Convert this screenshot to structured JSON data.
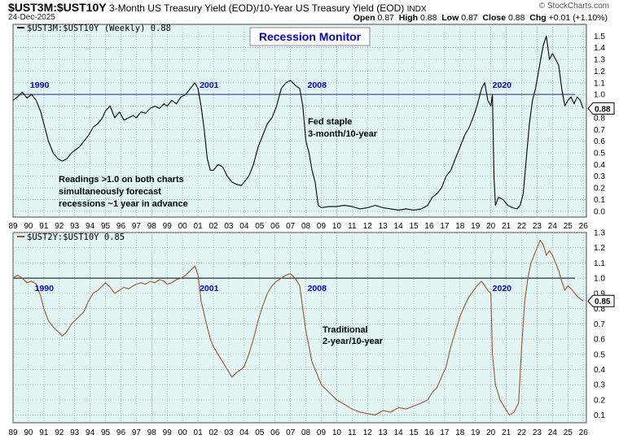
{
  "header": {
    "symbol": "$UST3M:$UST10Y",
    "description": "3-Month US Treasury Yield (EOD)/10-Year US Treasury Yield (EOD)",
    "index_tag": "INDX",
    "date": "24-Dec-2025",
    "brand": "© StockCharts.com",
    "quote": {
      "open_label": "Open",
      "open": "0.87",
      "high_label": "High",
      "high": "0.88",
      "low_label": "Low",
      "low": "0.87",
      "close_label": "Close",
      "close": "0.88",
      "chg_label": "Chg",
      "chg": "+0.01 (+1.10%)"
    }
  },
  "colors": {
    "panel_bg": "#e1f5f5",
    "grid": "#9a9a9a",
    "top_series": "#000000",
    "bottom_series": "#a0522d",
    "reference_line_top": "#1e2a80",
    "reference_line_bottom": "#000000",
    "year_label": "#0000cc",
    "title_box": "#0000cc"
  },
  "chart_data": [
    {
      "type": "line",
      "legend": "$UST3M:$UST10Y (Weekly) 0.88",
      "box_title": "Recession Monitor",
      "last_value_label": "0.88",
      "ylim": [
        -0.05,
        1.6
      ],
      "yticks": [
        0.0,
        0.1,
        0.2,
        0.3,
        0.4,
        0.5,
        0.6,
        0.7,
        0.8,
        0.9,
        1.0,
        1.1,
        1.2,
        1.3,
        1.4,
        1.5
      ],
      "ytick_labels": [
        "0.0",
        "0.1",
        "0.2",
        "0.3",
        "0.4",
        "0.5",
        "0.6",
        "0.7",
        "0.8",
        "0.9",
        "1.0",
        "1.1",
        "1.2",
        "1.3",
        "1.4",
        "1.5"
      ],
      "xlim": [
        1989.0,
        2026.2
      ],
      "xticks": [
        1989,
        1990,
        1991,
        1992,
        1993,
        1994,
        1995,
        1996,
        1997,
        1998,
        1999,
        2000,
        2001,
        2002,
        2003,
        2004,
        2005,
        2006,
        2007,
        2008,
        2009,
        2010,
        2011,
        2012,
        2013,
        2014,
        2015,
        2016,
        2017,
        2018,
        2019,
        2020,
        2021,
        2022,
        2023,
        2024,
        2025,
        2026
      ],
      "xtick_labels": [
        "89",
        "90",
        "91",
        "92",
        "93",
        "94",
        "95",
        "96",
        "97",
        "98",
        "99",
        "00",
        "01",
        "02",
        "03",
        "04",
        "05",
        "06",
        "07",
        "08",
        "09",
        "10",
        "11",
        "12",
        "13",
        "14",
        "15",
        "16",
        "17",
        "18",
        "19",
        "20",
        "21",
        "22",
        "23",
        "24",
        "25",
        "26"
      ],
      "reference_line": 1.0,
      "recession_labels": [
        {
          "text": "1990",
          "x": 1990.0
        },
        {
          "text": "2001",
          "x": 2001.0
        },
        {
          "text": "2008",
          "x": 2008.0
        },
        {
          "text": "2020",
          "x": 2020.0
        }
      ],
      "annotations": [
        {
          "lines": [
            "Fed staple",
            "3-month/10-year"
          ]
        },
        {
          "lines": [
            "Readings >1.0 on both charts",
            "simultaneously forecast",
            "recessions ~1 year in advance"
          ]
        }
      ],
      "series": [
        {
          "x": [
            1989.0,
            1989.3,
            1989.6,
            1989.9,
            1990.2,
            1990.5,
            1990.8,
            1991.0,
            1991.3,
            1991.6,
            1991.9,
            1992.2,
            1992.5,
            1992.8,
            1993.0,
            1993.3,
            1993.6,
            1993.9,
            1994.2,
            1994.5,
            1994.8,
            1995.0,
            1995.3,
            1995.6,
            1995.9,
            1996.2,
            1996.5,
            1996.8,
            1997.0,
            1997.3,
            1997.6,
            1997.9,
            1998.2,
            1998.5,
            1998.8,
            1999.0,
            1999.3,
            1999.6,
            1999.9,
            2000.2,
            2000.5,
            2000.8,
            2001.0,
            2001.2,
            2001.4,
            2001.6,
            2001.8,
            2002.0,
            2002.3,
            2002.6,
            2002.9,
            2003.2,
            2003.5,
            2003.8,
            2004.0,
            2004.3,
            2004.6,
            2004.9,
            2005.2,
            2005.5,
            2005.8,
            2006.1,
            2006.4,
            2006.7,
            2007.0,
            2007.3,
            2007.6,
            2007.8,
            2008.0,
            2008.2,
            2008.4,
            2008.6,
            2008.8,
            2009.0,
            2009.5,
            2010.0,
            2010.5,
            2011.0,
            2011.5,
            2012.0,
            2012.5,
            2013.0,
            2013.5,
            2014.0,
            2014.5,
            2015.0,
            2015.5,
            2015.9,
            2016.2,
            2016.5,
            2016.8,
            2017.1,
            2017.4,
            2017.7,
            2018.0,
            2018.3,
            2018.6,
            2018.9,
            2019.1,
            2019.4,
            2019.6,
            2019.8,
            2020.0,
            2020.1,
            2020.2,
            2020.3,
            2020.5,
            2020.8,
            2021.1,
            2021.4,
            2021.7,
            2021.9,
            2022.1,
            2022.3,
            2022.5,
            2022.7,
            2022.9,
            2023.1,
            2023.3,
            2023.4,
            2023.6,
            2023.8,
            2024.0,
            2024.2,
            2024.4,
            2024.6,
            2024.8,
            2025.0,
            2025.2,
            2025.4,
            2025.6,
            2025.8,
            2025.98
          ],
          "y": [
            0.95,
            0.98,
            1.02,
            0.97,
            1.0,
            0.95,
            0.85,
            0.75,
            0.6,
            0.5,
            0.45,
            0.43,
            0.45,
            0.5,
            0.52,
            0.55,
            0.6,
            0.65,
            0.72,
            0.75,
            0.8,
            0.86,
            0.9,
            0.8,
            0.85,
            0.78,
            0.8,
            0.82,
            0.8,
            0.85,
            0.84,
            0.88,
            0.9,
            0.88,
            0.92,
            0.9,
            0.95,
            0.92,
            0.98,
            1.0,
            1.05,
            1.1,
            1.05,
            0.9,
            0.7,
            0.45,
            0.35,
            0.35,
            0.4,
            0.38,
            0.3,
            0.25,
            0.23,
            0.22,
            0.25,
            0.3,
            0.4,
            0.55,
            0.65,
            0.75,
            0.8,
            0.9,
            1.05,
            1.1,
            1.12,
            1.08,
            1.05,
            0.9,
            0.6,
            0.5,
            0.35,
            0.25,
            0.05,
            0.03,
            0.04,
            0.04,
            0.05,
            0.04,
            0.02,
            0.03,
            0.05,
            0.03,
            0.02,
            0.01,
            0.02,
            0.01,
            0.02,
            0.05,
            0.12,
            0.15,
            0.2,
            0.3,
            0.35,
            0.45,
            0.55,
            0.65,
            0.72,
            0.82,
            0.9,
            1.05,
            1.1,
            0.95,
            0.9,
            1.0,
            0.3,
            0.05,
            0.12,
            0.1,
            0.05,
            0.03,
            0.02,
            0.05,
            0.15,
            0.45,
            0.75,
            0.95,
            1.05,
            1.2,
            1.35,
            1.42,
            1.5,
            1.3,
            1.35,
            1.3,
            1.25,
            1.05,
            0.9,
            0.95,
            0.98,
            0.92,
            0.98,
            0.95,
            0.88
          ]
        }
      ]
    },
    {
      "type": "line",
      "legend": "$UST2Y:$UST10Y 0.85",
      "last_value_label": "0.85",
      "ylim": [
        0.05,
        1.3
      ],
      "yticks": [
        0.1,
        0.2,
        0.3,
        0.4,
        0.5,
        0.6,
        0.7,
        0.8,
        0.9,
        1.0,
        1.1,
        1.2,
        1.3
      ],
      "ytick_labels": [
        "0.1",
        "0.2",
        "0.3",
        "0.4",
        "0.5",
        "0.6",
        "0.7",
        "0.8",
        "0.9",
        "1.0",
        "1.1",
        "1.2",
        "1.3"
      ],
      "xlim": [
        1989.0,
        2026.2
      ],
      "xticks": [
        1989,
        1990,
        1991,
        1992,
        1993,
        1994,
        1995,
        1996,
        1997,
        1998,
        1999,
        2000,
        2001,
        2002,
        2003,
        2004,
        2005,
        2006,
        2007,
        2008,
        2009,
        2010,
        2011,
        2012,
        2013,
        2014,
        2015,
        2016,
        2017,
        2018,
        2019,
        2020,
        2021,
        2022,
        2023,
        2024,
        2025,
        2026
      ],
      "xtick_labels": [
        "89",
        "90",
        "91",
        "92",
        "93",
        "94",
        "95",
        "96",
        "97",
        "98",
        "99",
        "00",
        "01",
        "02",
        "03",
        "04",
        "05",
        "06",
        "07",
        "08",
        "09",
        "10",
        "11",
        "12",
        "13",
        "14",
        "15",
        "16",
        "17",
        "18",
        "19",
        "20",
        "21",
        "22",
        "23",
        "24",
        "25",
        "26"
      ],
      "reference_line": 1.0,
      "recession_labels": [
        {
          "text": "1990",
          "x": 1990.3
        },
        {
          "text": "2001",
          "x": 2001.0
        },
        {
          "text": "2008",
          "x": 2008.0
        },
        {
          "text": "2020",
          "x": 2020.0
        }
      ],
      "annotations": [
        {
          "lines": [
            "Traditional",
            "2-year/10-year"
          ]
        }
      ],
      "series": [
        {
          "x": [
            1989.0,
            1989.3,
            1989.6,
            1989.9,
            1990.2,
            1990.5,
            1990.8,
            1991.0,
            1991.3,
            1991.6,
            1991.9,
            1992.2,
            1992.5,
            1992.8,
            1993.0,
            1993.3,
            1993.6,
            1993.9,
            1994.2,
            1994.5,
            1994.8,
            1995.0,
            1995.3,
            1995.6,
            1995.9,
            1996.2,
            1996.5,
            1996.8,
            1997.0,
            1997.3,
            1997.6,
            1997.9,
            1998.2,
            1998.5,
            1998.8,
            1999.0,
            1999.3,
            1999.6,
            1999.9,
            2000.2,
            2000.5,
            2000.8,
            2001.0,
            2001.2,
            2001.5,
            2001.8,
            2002.0,
            2002.3,
            2002.6,
            2002.9,
            2003.2,
            2003.5,
            2003.8,
            2004.0,
            2004.3,
            2004.6,
            2004.9,
            2005.2,
            2005.5,
            2005.8,
            2006.1,
            2006.4,
            2006.7,
            2007.0,
            2007.3,
            2007.6,
            2007.8,
            2008.0,
            2008.2,
            2008.4,
            2008.6,
            2008.8,
            2009.0,
            2009.5,
            2010.0,
            2010.5,
            2011.0,
            2011.5,
            2012.0,
            2012.5,
            2013.0,
            2013.5,
            2014.0,
            2014.5,
            2015.0,
            2015.5,
            2015.9,
            2016.2,
            2016.5,
            2016.8,
            2017.1,
            2017.4,
            2017.7,
            2018.0,
            2018.3,
            2018.6,
            2018.9,
            2019.1,
            2019.4,
            2019.6,
            2019.8,
            2020.0,
            2020.1,
            2020.3,
            2020.6,
            2020.9,
            2021.2,
            2021.5,
            2021.8,
            2022.0,
            2022.2,
            2022.4,
            2022.6,
            2022.8,
            2023.0,
            2023.2,
            2023.4,
            2023.6,
            2023.8,
            2024.0,
            2024.2,
            2024.4,
            2024.6,
            2024.8,
            2025.0,
            2025.3,
            2025.6,
            2025.98
          ],
          "y": [
            1.0,
            1.02,
            1.0,
            0.97,
            0.98,
            0.96,
            0.88,
            0.8,
            0.72,
            0.68,
            0.65,
            0.62,
            0.65,
            0.7,
            0.72,
            0.75,
            0.78,
            0.85,
            0.9,
            0.92,
            0.95,
            0.97,
            0.94,
            0.9,
            0.92,
            0.94,
            0.93,
            0.95,
            0.96,
            0.97,
            0.96,
            0.98,
            0.97,
            0.99,
            0.98,
            0.96,
            0.97,
            0.99,
            1.0,
            1.02,
            1.05,
            1.08,
            1.02,
            0.85,
            0.72,
            0.6,
            0.55,
            0.5,
            0.45,
            0.4,
            0.35,
            0.38,
            0.4,
            0.42,
            0.5,
            0.6,
            0.72,
            0.82,
            0.9,
            0.95,
            0.98,
            1.0,
            1.02,
            1.03,
            1.0,
            0.95,
            0.8,
            0.65,
            0.55,
            0.45,
            0.4,
            0.35,
            0.3,
            0.25,
            0.2,
            0.17,
            0.14,
            0.12,
            0.11,
            0.1,
            0.13,
            0.12,
            0.15,
            0.14,
            0.16,
            0.18,
            0.2,
            0.25,
            0.28,
            0.35,
            0.42,
            0.55,
            0.65,
            0.75,
            0.82,
            0.88,
            0.92,
            0.95,
            0.98,
            0.95,
            0.92,
            0.9,
            0.5,
            0.3,
            0.2,
            0.15,
            0.1,
            0.12,
            0.18,
            0.55,
            0.85,
            1.0,
            1.1,
            1.15,
            1.2,
            1.25,
            1.22,
            1.15,
            1.18,
            1.15,
            1.1,
            1.05,
            0.98,
            0.92,
            0.95,
            0.92,
            0.88,
            0.85
          ]
        }
      ]
    }
  ]
}
